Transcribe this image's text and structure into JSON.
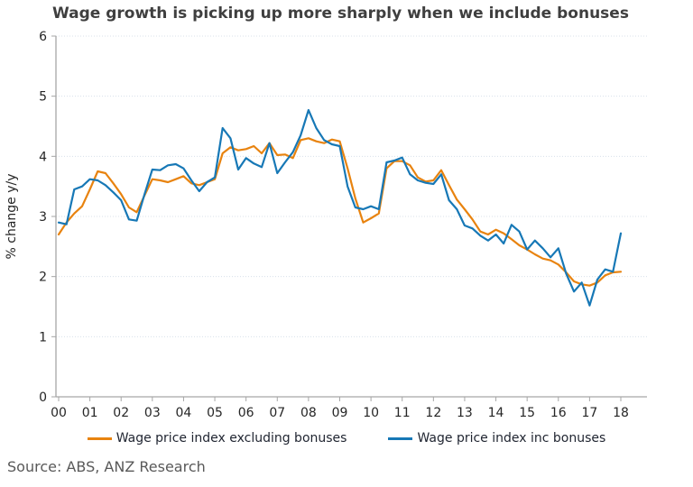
{
  "title": "Wage growth is picking up more sharply when we include bonuses",
  "source": "Source: ABS, ANZ Research",
  "chart_data": {
    "type": "line",
    "title": "Wage growth is picking up more sharply when we include bonuses",
    "xlabel": "",
    "ylabel": "% change y/y",
    "ylim": [
      0,
      6
    ],
    "yticks": [
      0,
      1,
      2,
      3,
      4,
      5,
      6
    ],
    "x_tick_labels": [
      "00",
      "01",
      "02",
      "03",
      "04",
      "05",
      "06",
      "07",
      "08",
      "09",
      "10",
      "11",
      "12",
      "13",
      "14",
      "15",
      "16",
      "17",
      "18"
    ],
    "frequency": "quarterly",
    "x_start": "2000 Q1",
    "x_end": "2018 Q1",
    "grid": "horizontal dotted gridlines",
    "legend_position": "bottom",
    "gridline_color": "#d8e0ea",
    "axis_color": "#a6a6a6",
    "tick_color": "#262626",
    "series": [
      {
        "name": "Wage price index excluding bonuses",
        "color": "#E8830F",
        "values": [
          2.7,
          2.9,
          3.05,
          3.17,
          3.45,
          3.75,
          3.72,
          3.55,
          3.37,
          3.15,
          3.07,
          3.35,
          3.62,
          3.6,
          3.57,
          3.62,
          3.67,
          3.55,
          3.52,
          3.57,
          3.62,
          4.05,
          4.15,
          4.1,
          4.12,
          4.17,
          4.05,
          4.22,
          4.02,
          4.03,
          3.97,
          4.27,
          4.3,
          4.25,
          4.22,
          4.28,
          4.25,
          3.8,
          3.3,
          2.9,
          2.97,
          3.05,
          3.8,
          3.92,
          3.92,
          3.85,
          3.65,
          3.58,
          3.6,
          3.77,
          3.52,
          3.28,
          3.12,
          2.95,
          2.75,
          2.7,
          2.78,
          2.72,
          2.62,
          2.52,
          2.45,
          2.37,
          2.3,
          2.27,
          2.2,
          2.07,
          1.92,
          1.87,
          1.85,
          1.9,
          2.02,
          2.07,
          2.08
        ]
      },
      {
        "name": "Wage price index inc bonuses",
        "color": "#1778B6",
        "values": [
          2.9,
          2.87,
          3.45,
          3.5,
          3.62,
          3.6,
          3.52,
          3.4,
          3.27,
          2.95,
          2.93,
          3.37,
          3.78,
          3.77,
          3.85,
          3.87,
          3.8,
          3.6,
          3.42,
          3.57,
          3.65,
          4.47,
          4.3,
          3.78,
          3.97,
          3.88,
          3.82,
          4.22,
          3.72,
          3.9,
          4.07,
          4.35,
          4.77,
          4.47,
          4.27,
          4.2,
          4.17,
          3.5,
          3.15,
          3.12,
          3.17,
          3.12,
          3.9,
          3.93,
          3.98,
          3.7,
          3.6,
          3.56,
          3.54,
          3.7,
          3.27,
          3.12,
          2.85,
          2.8,
          2.68,
          2.6,
          2.7,
          2.55,
          2.86,
          2.75,
          2.45,
          2.6,
          2.47,
          2.32,
          2.47,
          2.05,
          1.75,
          1.9,
          1.52,
          1.95,
          2.12,
          2.08,
          2.72
        ]
      }
    ]
  }
}
